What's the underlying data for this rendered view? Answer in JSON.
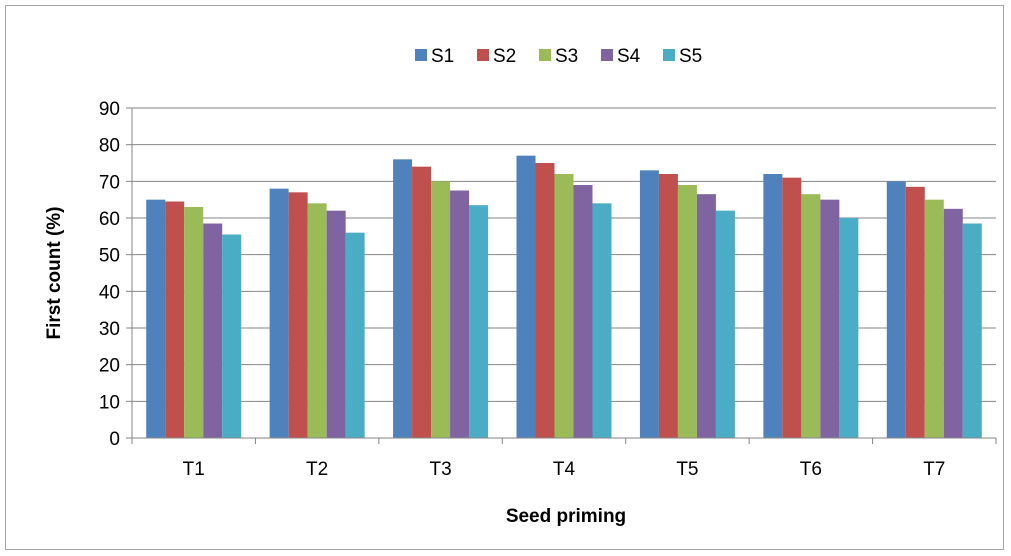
{
  "chart_data": {
    "type": "bar",
    "title": "",
    "xlabel": "Seed priming",
    "ylabel": "First count (%)",
    "ylim": [
      0,
      90
    ],
    "ytick_step": 10,
    "grid": true,
    "legend_position": "top",
    "categories": [
      "T1",
      "T2",
      "T3",
      "T4",
      "T5",
      "T6",
      "T7"
    ],
    "series": [
      {
        "name": "S1",
        "color": "#4f81bd",
        "values": [
          65,
          68,
          76,
          77,
          73,
          72,
          70
        ]
      },
      {
        "name": "S2",
        "color": "#c0504d",
        "values": [
          64.5,
          67,
          74,
          75,
          72,
          71,
          68.5
        ]
      },
      {
        "name": "S3",
        "color": "#9bbb59",
        "values": [
          63,
          64,
          70,
          72,
          69,
          66.5,
          65
        ]
      },
      {
        "name": "S4",
        "color": "#8064a2",
        "values": [
          58.5,
          62,
          67.5,
          69,
          66.5,
          65,
          62.5
        ]
      },
      {
        "name": "S5",
        "color": "#4bacc6",
        "values": [
          55.5,
          56,
          63.5,
          64,
          62,
          60,
          58.5
        ]
      }
    ]
  }
}
